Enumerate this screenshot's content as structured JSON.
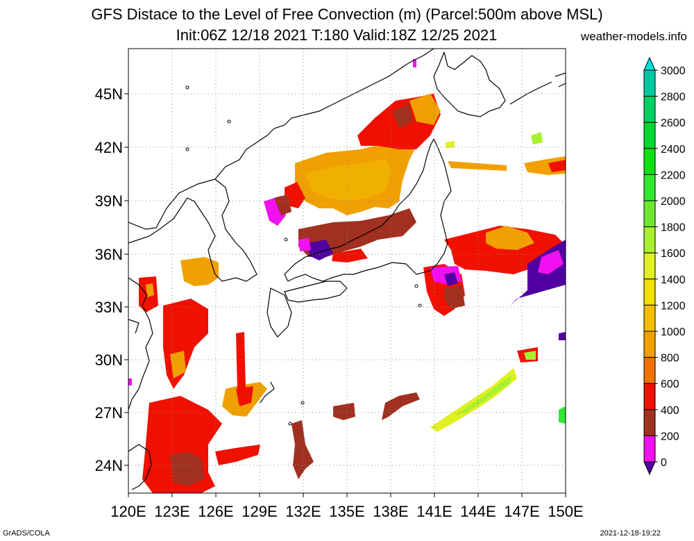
{
  "header": {
    "title": "GFS Distace to the Level of Free Convection (m) (Parcel:500m above MSL)",
    "subtitle": "Init:06Z 12/18 2021 T:180 Valid:18Z 12/25 2021",
    "site": "weather-models.info"
  },
  "map": {
    "lat_labels": [
      "45N",
      "42N",
      "39N",
      "36N",
      "33N",
      "30N",
      "27N",
      "24N"
    ],
    "lon_labels": [
      "120E",
      "123E",
      "126E",
      "129E",
      "132E",
      "135E",
      "138E",
      "141E",
      "144E",
      "147E",
      "150E"
    ],
    "lat_values": [
      45,
      42,
      39,
      36,
      33,
      30,
      27,
      24
    ],
    "lon_values": [
      120,
      123,
      126,
      129,
      132,
      135,
      138,
      141,
      144,
      147,
      150
    ]
  },
  "colorbar": {
    "labels": [
      "3000",
      "2800",
      "2600",
      "2400",
      "2200",
      "2000",
      "1800",
      "1600",
      "1400",
      "1200",
      "1000",
      "800",
      "600",
      "400",
      "200",
      "0"
    ],
    "colors": [
      "#00e0e0",
      "#00c8a0",
      "#00d060",
      "#00d830",
      "#10e010",
      "#30e830",
      "#70e830",
      "#a8f030",
      "#e0f020",
      "#f0e000",
      "#f0c000",
      "#f0a000",
      "#f07000",
      "#f01000",
      "#a03020",
      "#f010f0",
      "#5000a0"
    ]
  },
  "footer": {
    "left": "GrADS/COLA",
    "right": "2021-12-18-19:22"
  }
}
